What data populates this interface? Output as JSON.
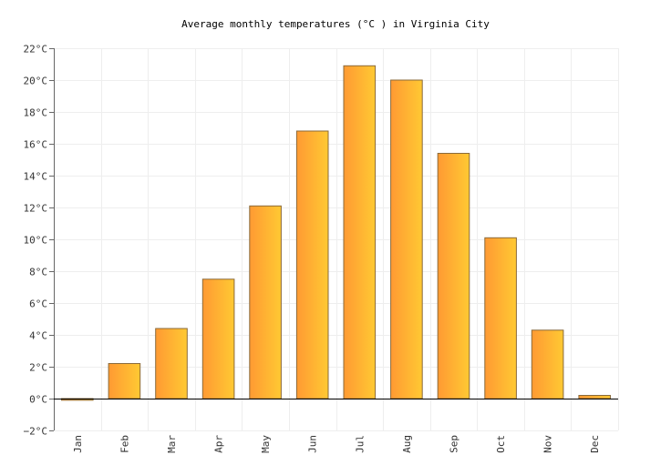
{
  "chart_data": {
    "type": "bar",
    "title": "Average monthly temperatures (°C ) in Virginia City",
    "xlabel": "",
    "ylabel": "",
    "categories": [
      "Jan",
      "Feb",
      "Mar",
      "Apr",
      "May",
      "Jun",
      "Jul",
      "Aug",
      "Sep",
      "Oct",
      "Nov",
      "Dec"
    ],
    "values": [
      -0.1,
      2.2,
      4.4,
      7.5,
      12.1,
      16.8,
      20.9,
      20.0,
      15.4,
      10.1,
      4.3,
      0.2
    ],
    "ylim": [
      -2,
      22
    ],
    "yticks": [
      -2,
      0,
      2,
      4,
      6,
      8,
      10,
      12,
      14,
      16,
      18,
      20,
      22
    ],
    "ytick_labels": [
      "−2°C",
      "0°C",
      "2°C",
      "4°C",
      "6°C",
      "8°C",
      "10°C",
      "12°C",
      "14°C",
      "16°C",
      "18°C",
      "20°C",
      "22°C"
    ],
    "grid": true,
    "legend": "none",
    "colors": {
      "bar_start": "#ff9a33",
      "bar_end": "#ffc933",
      "bar_stroke": "#8a6a3a"
    }
  }
}
